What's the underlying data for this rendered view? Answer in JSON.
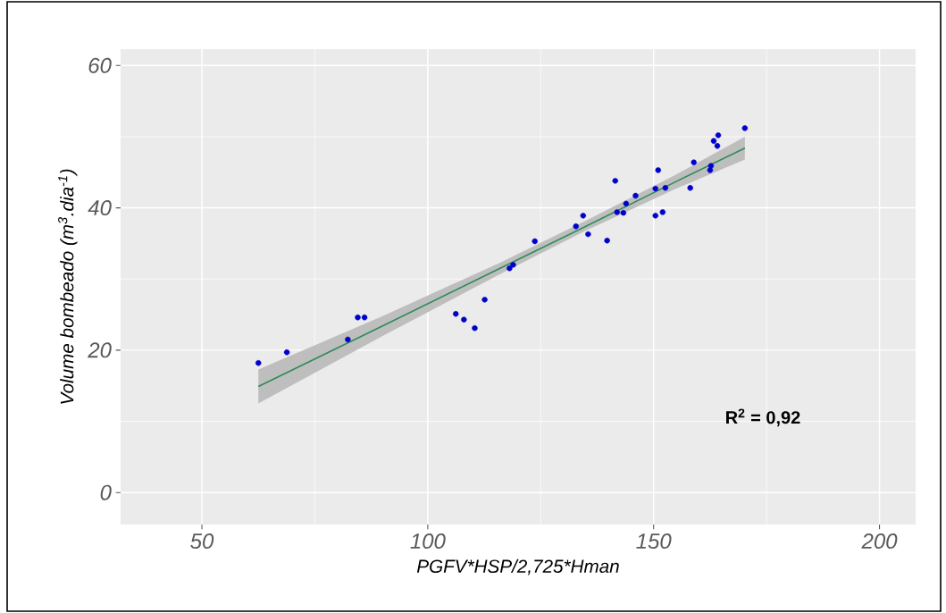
{
  "chart_data": {
    "type": "scatter",
    "xlabel": "PGFV*HSP/2,725*Hman",
    "ylabel": "Volume bombeado (m$^{3}$.dia$^{-1}$)",
    "xlim": [
      32,
      208
    ],
    "ylim": [
      -4.5,
      62.3
    ],
    "xticks": [
      50,
      100,
      150,
      200
    ],
    "yticks": [
      0,
      20,
      40,
      60
    ],
    "grid": true,
    "annotations": [
      "**R$^{2}$ = 0,92**"
    ],
    "series": [
      {
        "color": "#0000cd",
        "marker": "circle",
        "x": [
          62.5,
          68.8,
          82.3,
          84.5,
          86.0,
          106.2,
          108.0,
          110.4,
          112.6,
          118.1,
          118.9,
          123.7,
          132.8,
          134.4,
          135.5,
          139.7,
          141.5,
          141.9,
          143.3,
          143.9,
          146.0,
          150.4,
          150.4,
          151.0,
          152.0,
          152.6,
          158.1,
          158.9,
          162.5,
          162.7,
          163.3,
          164.1,
          164.3,
          170.2
        ],
        "values": [
          18.2,
          19.7,
          21.5,
          24.6,
          24.6,
          25.1,
          24.3,
          23.1,
          27.1,
          31.5,
          32.0,
          35.3,
          37.4,
          38.9,
          36.3,
          35.4,
          43.8,
          39.4,
          39.3,
          40.6,
          41.7,
          38.9,
          42.7,
          45.3,
          39.4,
          42.8,
          42.8,
          46.4,
          45.3,
          45.9,
          49.4,
          48.7,
          50.2,
          51.2
        ]
      },
      {
        "type": "line",
        "color": "#2e8b57",
        "line_style": "solid",
        "x": [
          62.5,
          90,
          116,
          135,
          155,
          170.2
        ],
        "values": [
          14.9,
          23.4,
          31.5,
          37.4,
          43.7,
          48.4
        ],
        "lower": [
          12.5,
          22.0,
          30.7,
          36.8,
          42.7,
          46.8
        ],
        "upper": [
          17.3,
          24.8,
          32.3,
          38.2,
          44.7,
          50.0
        ]
      }
    ]
  }
}
